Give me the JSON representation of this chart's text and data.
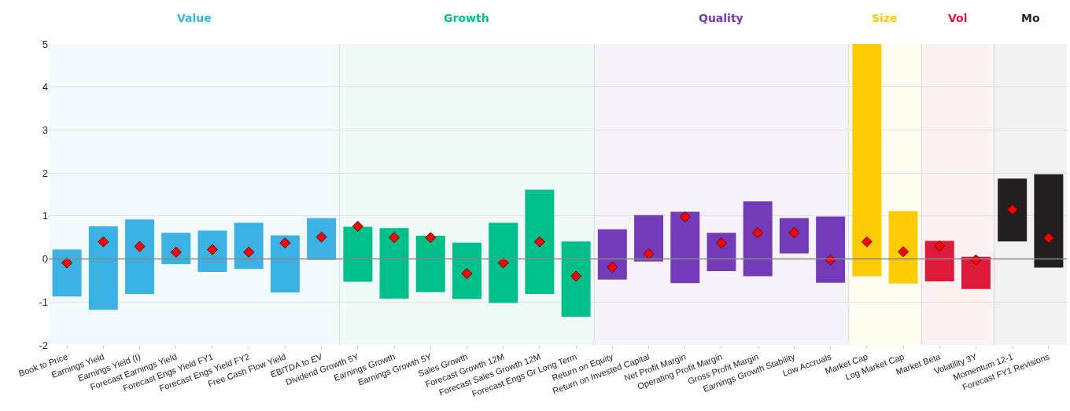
{
  "chart_data": {
    "type": "bar",
    "categories": [
      "Book to Price",
      "Earnings Yield",
      "Earnings Yield (I)",
      "Forecast Earnings Yield",
      "Forecast Engs Yield FY1",
      "Forecast Engs Yield FY2",
      "Free Cash Flow Yield",
      "EBITDA to EV",
      "Dividend Growth 5Y",
      "Earnings Growth",
      "Earnings Growth 5Y",
      "Sales Growth",
      "Forecast Growth 12M",
      "Forecast Sales Growth 12M",
      "Forecast Engs Gr Long Term",
      "Return on Equity",
      "Return on Invested Capital",
      "Net Profit Margin",
      "Operating Profit Margin",
      "Gross Profit Margin",
      "Earnings Growth Stability",
      "Low Accruals",
      "Market Cap",
      "Log Market Cap",
      "Market Beta",
      "Volatility 3Y",
      "Momentum 12-1",
      "Forecast FY1 Revisions"
    ],
    "series": [
      {
        "values": [
          1.09,
          1.94,
          1.73,
          0.73,
          0.96,
          1.07,
          1.33,
          0.97,
          1.28,
          1.64,
          1.31,
          1.31,
          1.86,
          2.42,
          1.75,
          1.17,
          1.08,
          1.66,
          0.89,
          1.74,
          0.82,
          1.54,
          5.4,
          1.68,
          0.94,
          0.75,
          1.46,
          2.17
        ],
        "base": [
          -0.87,
          -1.18,
          -0.81,
          -0.12,
          -0.3,
          -0.23,
          -0.78,
          -0.02,
          -0.53,
          -0.92,
          -0.77,
          -0.93,
          -1.02,
          -0.81,
          -1.34,
          -0.48,
          -0.06,
          -0.56,
          -0.28,
          -0.4,
          0.13,
          -0.55,
          -0.4,
          -0.57,
          -0.52,
          -0.7,
          0.41,
          -0.2
        ],
        "colors": [
          "#3bb2e3",
          "#3bb2e3",
          "#3bb2e3",
          "#3bb2e3",
          "#3bb2e3",
          "#3bb2e3",
          "#3bb2e3",
          "#3bb2e3",
          "#00bf8a",
          "#00bf8a",
          "#00bf8a",
          "#00bf8a",
          "#00bf8a",
          "#00bf8a",
          "#00bf8a",
          "#733bb8",
          "#733bb8",
          "#733bb8",
          "#733bb8",
          "#733bb8",
          "#733bb8",
          "#733bb8",
          "#fecb05",
          "#fecb05",
          "#de1a3a",
          "#de1a3a",
          "#231f20",
          "#231f20"
        ]
      },
      {
        "type": "scatter",
        "marker": "diamond",
        "color": "#ff0000",
        "values": [
          -0.09,
          0.4,
          0.29,
          0.16,
          0.22,
          0.16,
          0.37,
          0.51,
          0.76,
          0.5,
          0.5,
          -0.34,
          -0.09,
          0.4,
          -0.4,
          -0.19,
          0.12,
          0.98,
          0.37,
          0.61,
          0.61,
          -0.02,
          0.4,
          0.17,
          0.3,
          -0.02,
          1.15,
          0.49
        ]
      }
    ],
    "bands": [
      {
        "axis": "x",
        "from": "Book to Price",
        "to": "EBITDA to EV",
        "label": "Value",
        "color": "#3bb2e3"
      },
      {
        "axis": "x",
        "from": "Dividend Growth 5Y",
        "to": "Forecast Engs Gr Long Term",
        "label": "Growth",
        "color": "#00bf8a"
      },
      {
        "axis": "x",
        "from": "Return on Equity",
        "to": "Low Accruals",
        "label": "Quality",
        "color": "#733bb8"
      },
      {
        "axis": "x",
        "from": "Market Cap",
        "to": "Log Market Cap",
        "label": "Size",
        "color": "#fecb05"
      },
      {
        "axis": "x",
        "from": "Market Beta",
        "to": "Volatility 3Y",
        "label": "Vol",
        "color": "#de1a3a"
      },
      {
        "axis": "x",
        "from": "Momentum 12-1",
        "to": "Forecast FY1 Revisions",
        "label": "Mo",
        "color": "#231f20"
      }
    ],
    "ylim": [
      -2,
      5
    ],
    "yticks": [
      -2,
      -1,
      0,
      1,
      2,
      3,
      4,
      5
    ],
    "grid": "y"
  }
}
